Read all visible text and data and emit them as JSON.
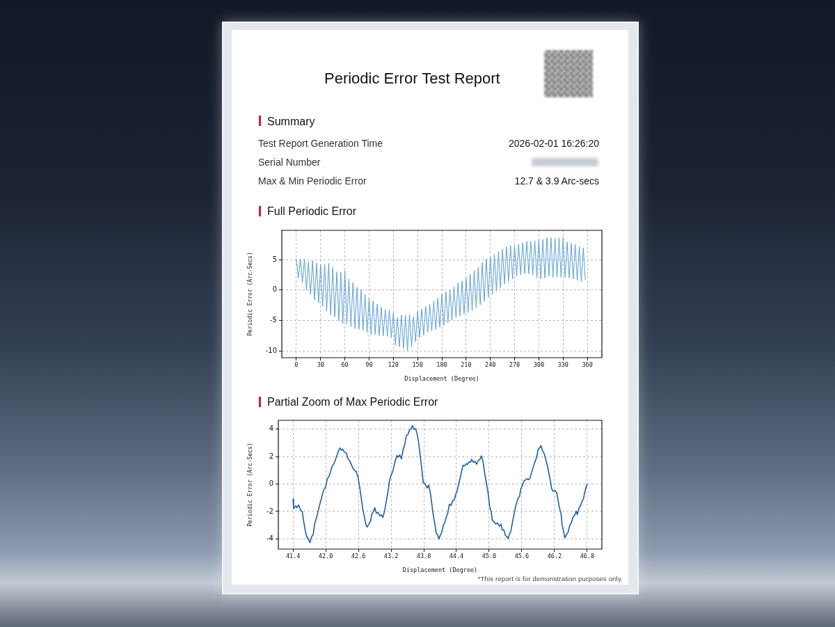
{
  "chart_data": [
    {
      "type": "other",
      "title": "Periodic Error Test Report",
      "subtitle": "Summary",
      "annotations": [
        "Test Report Generation Time",
        "2026-02-01 16:26:20",
        "Serial Number",
        "Max & Min Periodic Error",
        "12.7 & 3.9 Arc-secs"
      ]
    },
    {
      "type": "line",
      "title": "Full Periodic Error",
      "xlabel": "Displacement (Degree)",
      "ylabel": "Periodic Error (Arc-Secs)",
      "xlim": [
        -18,
        378
      ],
      "ylim": [
        -11.1,
        9.8
      ],
      "xticks": [
        0,
        30,
        60,
        90,
        120,
        150,
        180,
        210,
        240,
        270,
        300,
        330,
        360
      ],
      "yticks": [
        -10,
        -5,
        0,
        5
      ],
      "grid": true,
      "series": [
        {
          "color": "#5b9fd4",
          "x": [
            0,
            2.5,
            5,
            7.5,
            10,
            12.5,
            15,
            17.5,
            20,
            22.5,
            25,
            27.5,
            30,
            32.5,
            35,
            37.5,
            40,
            42.5,
            45,
            47.5,
            50,
            52.5,
            55,
            57.5,
            60,
            62.5,
            65,
            67.5,
            70,
            72.5,
            75,
            77.5,
            80,
            82.5,
            85,
            87.5,
            90,
            92.5,
            95,
            97.5,
            100,
            102.5,
            105,
            107.5,
            110,
            112.5,
            115,
            117.5,
            120,
            122.5,
            125,
            127.5,
            130,
            132.5,
            135,
            137.5,
            140,
            142.5,
            145,
            147.5,
            150,
            152.5,
            155,
            157.5,
            160,
            162.5,
            165,
            167.5,
            170,
            172.5,
            175,
            177.5,
            180,
            182.5,
            185,
            187.5,
            190,
            192.5,
            195,
            197.5,
            200,
            202.5,
            205,
            207.5,
            210,
            212.5,
            215,
            217.5,
            220,
            222.5,
            225,
            227.5,
            230,
            232.5,
            235,
            237.5,
            240,
            242.5,
            245,
            247.5,
            250,
            252.5,
            255,
            257.5,
            260,
            262.5,
            265,
            267.5,
            270,
            272.5,
            275,
            277.5,
            280,
            282.5,
            285,
            287.5,
            290,
            292.5,
            295,
            297.5,
            300,
            302.5,
            305,
            307.5,
            310,
            312.5,
            315,
            317.5,
            320,
            322.5,
            325,
            327.5,
            330,
            332.5,
            335,
            337.5,
            340,
            342.5,
            345,
            347.5,
            350,
            352.5,
            355,
            357.5
          ],
          "values": [
            5.1,
            2.0,
            5.1,
            1.2,
            5.1,
            0.0,
            4.6,
            -0.7,
            4.8,
            -1.6,
            4.4,
            -2.1,
            4.2,
            -2.7,
            4.2,
            -3.5,
            4.4,
            -4.1,
            3.7,
            -4.4,
            3.0,
            -5.0,
            2.9,
            -5.5,
            3.2,
            -5.6,
            1.8,
            -6.0,
            1.2,
            -6.3,
            0.4,
            -6.4,
            0.1,
            -6.6,
            -0.7,
            -7.0,
            -1.3,
            -7.3,
            -1.8,
            -7.3,
            -2.3,
            -7.5,
            -2.8,
            -7.5,
            -3.2,
            -7.6,
            -3.3,
            -7.8,
            -3.7,
            -9.0,
            -4.5,
            -9.3,
            -4.1,
            -9.6,
            -4.2,
            -9.9,
            -4.0,
            -9.3,
            -4.3,
            -8.5,
            -3.5,
            -7.8,
            -3.1,
            -7.4,
            -2.7,
            -6.9,
            -2.3,
            -6.7,
            -1.8,
            -6.5,
            -1.3,
            -6.1,
            -0.7,
            -5.8,
            -0.3,
            -5.4,
            0.0,
            -4.9,
            0.5,
            -4.5,
            1.2,
            -4.3,
            1.5,
            -3.9,
            2.0,
            -3.7,
            2.6,
            -3.4,
            3.2,
            -2.9,
            3.7,
            -2.4,
            4.5,
            -1.8,
            5.1,
            -1.2,
            5.5,
            -0.7,
            5.9,
            -0.2,
            6.3,
            0.4,
            6.7,
            1.0,
            7.1,
            1.4,
            7.3,
            1.8,
            7.3,
            2.3,
            7.5,
            2.5,
            7.8,
            2.7,
            8.0,
            2.7,
            8.0,
            2.5,
            8.1,
            2.0,
            8.3,
            1.8,
            8.3,
            2.0,
            8.6,
            2.3,
            8.6,
            2.1,
            8.5,
            2.1,
            8.6,
            2.1,
            8.6,
            2.1,
            7.9,
            2.0,
            7.7,
            1.8,
            7.5,
            1.6,
            7.1,
            1.4,
            6.9,
            1.7
          ]
        }
      ]
    },
    {
      "type": "line",
      "title": "Partial Zoom of Max Periodic Error",
      "xlabel": "Displacement (Degree)",
      "ylabel": "Periodic Error (Arc-Secs)",
      "xlim": [
        41.13,
        47.07
      ],
      "ylim": [
        -4.74,
        4.64
      ],
      "xticks": [
        41.4,
        {
          "value": 42,
          "label": "42.0"
        },
        42.6,
        43.2,
        43.8,
        44.4,
        {
          "value": 45,
          "label": "45.0"
        },
        45.6,
        46.2,
        46.8
      ],
      "yticks": [
        -4,
        -2,
        0,
        2,
        4
      ],
      "grid": true,
      "annotations": [
        "*This report is for demonstration purposes only."
      ],
      "series": [
        {
          "color": "#1f5f9c",
          "x": [
            41.4,
            41.41,
            41.43,
            41.45,
            41.47,
            41.5,
            41.54,
            41.57,
            41.6,
            41.63,
            41.66,
            41.68,
            41.71,
            41.74,
            41.77,
            41.8,
            41.83,
            41.87,
            41.92,
            41.96,
            42.0,
            42.03,
            42.06,
            42.12,
            42.14,
            42.17,
            42.22,
            42.26,
            42.29,
            42.31,
            42.34,
            42.38,
            42.41,
            42.44,
            42.5,
            42.53,
            42.56,
            42.59,
            42.62,
            42.68,
            42.74,
            42.76,
            42.79,
            42.82,
            42.85,
            42.88,
            42.9,
            42.93,
            42.96,
            42.99,
            43.02,
            43.05,
            43.08,
            43.14,
            43.17,
            43.2,
            43.23,
            43.28,
            43.31,
            43.33,
            43.36,
            43.39,
            43.42,
            43.45,
            43.48,
            43.51,
            43.54,
            43.57,
            43.59,
            43.62,
            43.65,
            43.67,
            43.7,
            43.76,
            43.79,
            43.82,
            43.84,
            43.86,
            43.89,
            43.92,
            43.97,
            44.03,
            44.06,
            44.08,
            44.1,
            44.13,
            44.16,
            44.19,
            44.22,
            44.24,
            44.27,
            44.3,
            44.33,
            44.36,
            44.39,
            44.41,
            44.47,
            44.52,
            44.55,
            44.58,
            44.6,
            44.63,
            44.66,
            44.68,
            44.71,
            44.74,
            44.77,
            44.8,
            44.83,
            44.86,
            44.89,
            44.92,
            44.98,
            45.01,
            45.04,
            45.06,
            45.09,
            45.12,
            45.15,
            45.19,
            45.22,
            45.24,
            45.27,
            45.3,
            45.33,
            45.35,
            45.37,
            45.4,
            45.43,
            45.49,
            45.53,
            45.56,
            45.58,
            45.61,
            45.64,
            45.67,
            45.7,
            45.72,
            45.75,
            45.77,
            45.83,
            45.87,
            45.9,
            45.92,
            45.95,
            45.98,
            46.01,
            46.07,
            46.12,
            46.15,
            46.18,
            46.21,
            46.24,
            46.29,
            46.32,
            46.34,
            46.37,
            46.39,
            46.42,
            46.45,
            46.48,
            46.51,
            46.54,
            46.57,
            46.6,
            46.62,
            46.65,
            46.68,
            46.71,
            46.73,
            46.75,
            46.78,
            46.8
          ],
          "values": [
            -1.1,
            -1.78,
            -1.69,
            -1.59,
            -1.73,
            -1.53,
            -1.9,
            -2.02,
            -2.83,
            -3.51,
            -3.93,
            -3.98,
            -4.27,
            -3.85,
            -3.68,
            -2.83,
            -2.49,
            -1.81,
            -1.05,
            -0.46,
            -0.2,
            0.39,
            0.53,
            1.32,
            1.41,
            1.66,
            2.25,
            2.63,
            2.46,
            2.54,
            2.34,
            2.25,
            1.83,
            1.69,
            1.15,
            0.98,
            0.9,
            0.56,
            -0.12,
            -1.81,
            -3.0,
            -3.14,
            -2.92,
            -2.75,
            -2.15,
            -1.98,
            -1.73,
            -2.12,
            -2.07,
            -2.32,
            -2.24,
            -2.44,
            -1.98,
            -0.63,
            0.22,
            0.64,
            0.9,
            1.75,
            2.08,
            1.95,
            2.12,
            1.83,
            2.51,
            2.85,
            3.53,
            3.61,
            3.95,
            4.03,
            4.25,
            3.98,
            4.03,
            3.78,
            3.19,
            1.24,
            0.08,
            0.05,
            -0.12,
            -0.29,
            -0.08,
            -0.63,
            -2.15,
            -3.59,
            -3.76,
            -4.02,
            -3.76,
            -3.51,
            -3.0,
            -2.75,
            -2.32,
            -2.15,
            -1.47,
            -1.56,
            -1.22,
            -1.17,
            -0.71,
            -0.54,
            0.47,
            1.37,
            1.32,
            1.49,
            1.41,
            1.61,
            1.58,
            1.8,
            1.58,
            1.66,
            1.44,
            1.71,
            1.78,
            2.05,
            1.58,
            0.73,
            -0.63,
            -1.64,
            -2.07,
            -2.66,
            -2.75,
            -2.92,
            -2.83,
            -3.08,
            -2.92,
            -3.34,
            -3.34,
            -3.76,
            -3.85,
            -3.98,
            -3.68,
            -3.42,
            -2.75,
            -1.56,
            -1.05,
            -0.88,
            -0.37,
            -0.12,
            0.22,
            0.31,
            0.39,
            0.31,
            0.42,
            0.73,
            1.49,
            1.92,
            2.51,
            2.59,
            2.8,
            2.42,
            2.22,
            1.32,
            0.31,
            -0.37,
            -0.54,
            -0.46,
            -0.63,
            -1.73,
            -2.15,
            -3.0,
            -3.51,
            -3.93,
            -3.68,
            -3.51,
            -3.0,
            -2.83,
            -2.41,
            -2.29,
            -1.98,
            -2.24,
            -1.73,
            -1.56,
            -1.22,
            -1.1,
            -0.71,
            -0.2,
            -0.03
          ]
        }
      ]
    }
  ]
}
